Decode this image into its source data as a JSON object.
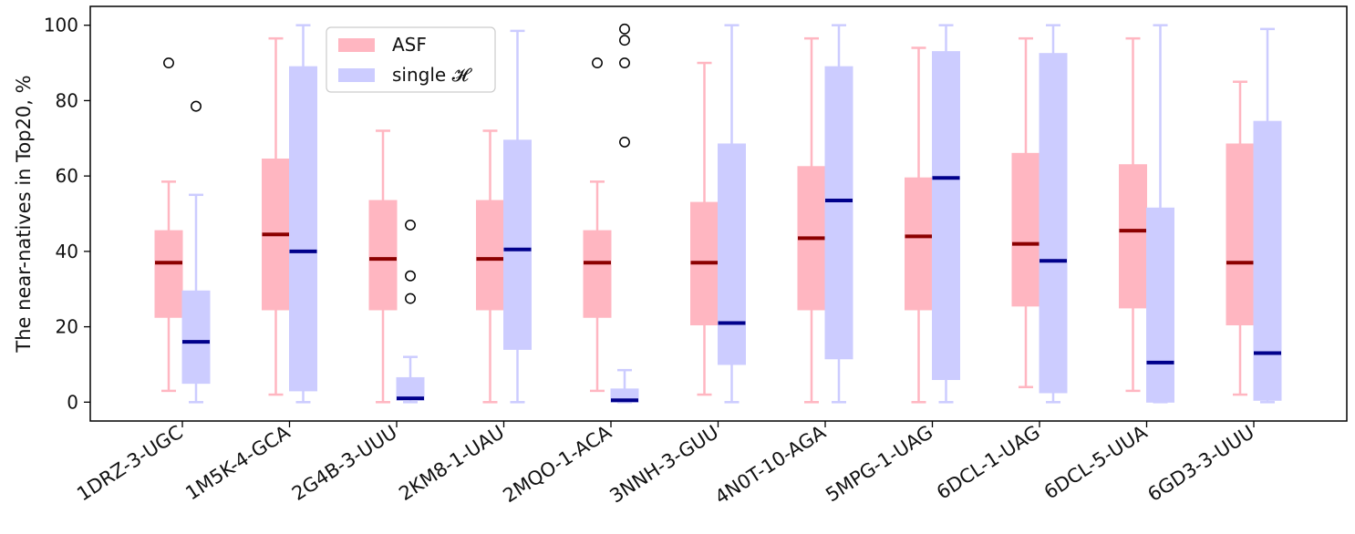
{
  "chart_data": {
    "type": "boxplot",
    "title": "",
    "xlabel": "",
    "ylabel": "The near-natives in Top20, %",
    "ylim": [
      -5,
      105
    ],
    "yticks": [
      0,
      20,
      40,
      60,
      80,
      100
    ],
    "grid": false,
    "legend_position": "top-left-inner",
    "categories": [
      "1DRZ-3-UGC",
      "1M5K-4-GCA",
      "2G4B-3-UUU",
      "2KM8-1-UAU",
      "2MQO-1-ACA",
      "3NNH-3-GUU",
      "4N0T-10-AGA",
      "5MPG-1-UAG",
      "6DCL-1-UAG",
      "6DCL-5-UUA",
      "6GD3-3-UUU"
    ],
    "series": [
      {
        "name": "ASF",
        "box_color": "#ffb6c1",
        "median_color": "#8b0000",
        "whisker_color": "#ffb6c1",
        "boxes": [
          {
            "whislo": 3,
            "q1": 22.5,
            "med": 37,
            "q3": 45.5,
            "whishi": 58.5,
            "fliers": [
              90
            ]
          },
          {
            "whislo": 2,
            "q1": 24.5,
            "med": 44.5,
            "q3": 64.5,
            "whishi": 96.5,
            "fliers": []
          },
          {
            "whislo": 0,
            "q1": 24.5,
            "med": 38,
            "q3": 53.5,
            "whishi": 72,
            "fliers": []
          },
          {
            "whislo": 0,
            "q1": 24.5,
            "med": 38,
            "q3": 53.5,
            "whishi": 72,
            "fliers": []
          },
          {
            "whislo": 3,
            "q1": 22.5,
            "med": 37,
            "q3": 45.5,
            "whishi": 58.5,
            "fliers": [
              90
            ]
          },
          {
            "whislo": 2,
            "q1": 20.5,
            "med": 37,
            "q3": 53,
            "whishi": 90,
            "fliers": []
          },
          {
            "whislo": 0,
            "q1": 24.5,
            "med": 43.5,
            "q3": 62.5,
            "whishi": 96.5,
            "fliers": []
          },
          {
            "whislo": 0,
            "q1": 24.5,
            "med": 44,
            "q3": 59.5,
            "whishi": 94,
            "fliers": []
          },
          {
            "whislo": 4,
            "q1": 25.5,
            "med": 42,
            "q3": 66,
            "whishi": 96.5,
            "fliers": []
          },
          {
            "whislo": 3,
            "q1": 25,
            "med": 45.5,
            "q3": 63,
            "whishi": 96.5,
            "fliers": []
          },
          {
            "whislo": 2,
            "q1": 20.5,
            "med": 37,
            "q3": 68.5,
            "whishi": 85,
            "fliers": []
          }
        ]
      },
      {
        "name": "single 𝓗",
        "box_color": "#ccccff",
        "median_color": "#00008b",
        "whisker_color": "#ccccff",
        "boxes": [
          {
            "whislo": 0,
            "q1": 5,
            "med": 16,
            "q3": 29.5,
            "whishi": 55,
            "fliers": [
              78.5
            ]
          },
          {
            "whislo": 0,
            "q1": 3,
            "med": 40,
            "q3": 89,
            "whishi": 100,
            "fliers": []
          },
          {
            "whislo": 0,
            "q1": 0.5,
            "med": 1,
            "q3": 6.5,
            "whishi": 12,
            "fliers": [
              47,
              33.5,
              27.5
            ]
          },
          {
            "whislo": 0,
            "q1": 14,
            "med": 40.5,
            "q3": 69.5,
            "whishi": 98.5,
            "fliers": []
          },
          {
            "whislo": 0,
            "q1": 0,
            "med": 0.5,
            "q3": 3.5,
            "whishi": 8.5,
            "fliers": [
              99,
              96,
              90,
              69
            ]
          },
          {
            "whislo": 0,
            "q1": 10,
            "med": 21,
            "q3": 68.5,
            "whishi": 100,
            "fliers": []
          },
          {
            "whislo": 0,
            "q1": 11.5,
            "med": 53.5,
            "q3": 89,
            "whishi": 100,
            "fliers": []
          },
          {
            "whislo": 0,
            "q1": 6,
            "med": 59.5,
            "q3": 93,
            "whishi": 100,
            "fliers": []
          },
          {
            "whislo": 0,
            "q1": 2.5,
            "med": 37.5,
            "q3": 92.5,
            "whishi": 100,
            "fliers": []
          },
          {
            "whislo": 0,
            "q1": 0,
            "med": 10.5,
            "q3": 51.5,
            "whishi": 100,
            "fliers": []
          },
          {
            "whislo": 0,
            "q1": 0.5,
            "med": 13,
            "q3": 74.5,
            "whishi": 99,
            "fliers": []
          }
        ]
      }
    ]
  }
}
